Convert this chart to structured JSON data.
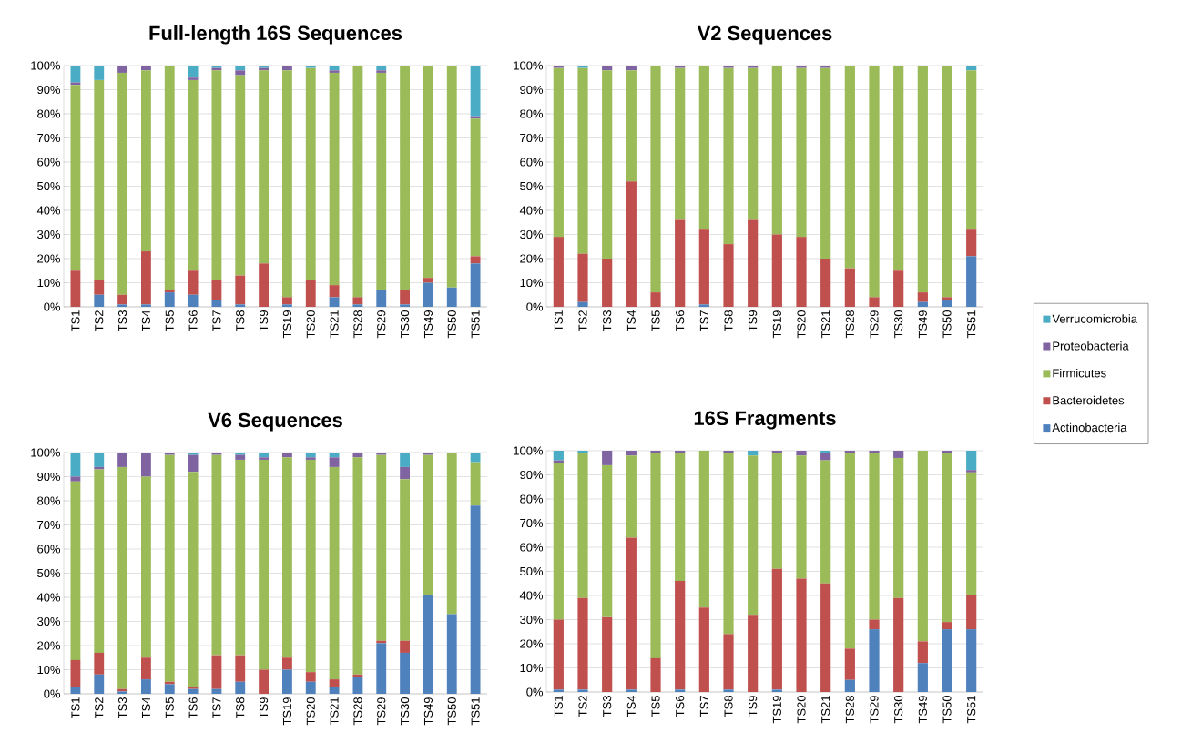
{
  "chart_data": [
    {
      "type": "bar",
      "stacked": true,
      "title": "Full-length 16S Sequences",
      "categories": [
        "TS1",
        "TS2",
        "TS3",
        "TS4",
        "TS5",
        "TS6",
        "TS7",
        "TS8",
        "TS9",
        "TS19",
        "TS20",
        "TS21",
        "TS28",
        "TS29",
        "TS30",
        "TS49",
        "TS50",
        "TS51"
      ],
      "ylim": [
        0,
        100
      ],
      "yticks": [
        {
          "value": 0,
          "label": "0%"
        },
        {
          "value": 10,
          "label": "10%"
        },
        {
          "value": 20,
          "label": "20%"
        },
        {
          "value": 30,
          "label": "30%"
        },
        {
          "value": 40,
          "label": "40%"
        },
        {
          "value": 50,
          "label": "50%"
        },
        {
          "value": 60,
          "label": "60%"
        },
        {
          "value": 70,
          "label": "70%"
        },
        {
          "value": 80,
          "label": "80%"
        },
        {
          "value": 90,
          "label": "90%"
        },
        {
          "value": 100,
          "label": "100%"
        }
      ],
      "grid": "y",
      "series": [
        {
          "color": "#4f81bd",
          "values": [
            0,
            5,
            1,
            1,
            6,
            5,
            3,
            1,
            0,
            1,
            0,
            4,
            1,
            7,
            1,
            10,
            8,
            18
          ]
        },
        {
          "color": "#c0504d",
          "values": [
            15,
            6,
            4,
            22,
            1,
            10,
            8,
            12,
            18,
            3,
            11,
            5,
            3,
            0,
            6,
            2,
            0,
            3
          ]
        },
        {
          "color": "#9bbb59",
          "values": [
            77,
            83,
            92,
            75,
            93,
            79,
            87,
            83,
            80,
            94,
            88,
            88,
            96,
            90,
            93,
            88,
            92,
            57
          ]
        },
        {
          "color": "#8064a2",
          "values": [
            1,
            0,
            3,
            2,
            0,
            1,
            1,
            2,
            1,
            2,
            0,
            1,
            0,
            1,
            0,
            0,
            0,
            1
          ]
        },
        {
          "color": "#4bacc6",
          "values": [
            7,
            6,
            0,
            0,
            0,
            5,
            1,
            2,
            1,
            0,
            1,
            2,
            0,
            2,
            0,
            0,
            0,
            21
          ]
        }
      ]
    },
    {
      "type": "bar",
      "stacked": true,
      "title": "V2 Sequences",
      "categories": [
        "TS1",
        "TS2",
        "TS3",
        "TS4",
        "TS5",
        "TS6",
        "TS7",
        "TS8",
        "TS9",
        "TS19",
        "TS20",
        "TS21",
        "TS28",
        "TS29",
        "TS30",
        "TS49",
        "TS50",
        "TS51"
      ],
      "ylim": [
        0,
        100
      ],
      "yticks": [
        {
          "value": 0,
          "label": "0%"
        },
        {
          "value": 10,
          "label": "10%"
        },
        {
          "value": 20,
          "label": "20%"
        },
        {
          "value": 30,
          "label": "30%"
        },
        {
          "value": 40,
          "label": "40%"
        },
        {
          "value": 50,
          "label": "50%"
        },
        {
          "value": 60,
          "label": "60%"
        },
        {
          "value": 70,
          "label": "70%"
        },
        {
          "value": 80,
          "label": "80%"
        },
        {
          "value": 90,
          "label": "90%"
        },
        {
          "value": 100,
          "label": "100%"
        }
      ],
      "grid": "y",
      "legend": "right",
      "series": [
        {
          "name": "Actinobacteria",
          "color": "#4f81bd",
          "values": [
            0,
            2,
            0,
            0,
            0,
            0,
            1,
            0,
            0,
            0,
            0,
            0,
            0,
            0,
            0,
            2,
            3,
            21
          ]
        },
        {
          "name": "Bacteroidetes",
          "color": "#c0504d",
          "values": [
            29,
            20,
            20,
            52,
            6,
            36,
            31,
            26,
            36,
            30,
            29,
            20,
            16,
            4,
            15,
            4,
            1,
            11
          ]
        },
        {
          "name": "Firmicutes",
          "color": "#9bbb59",
          "values": [
            70,
            77,
            78,
            46,
            94,
            63,
            68,
            73,
            63,
            70,
            70,
            79,
            84,
            96,
            85,
            94,
            96,
            66
          ]
        },
        {
          "name": "Proteobacteria",
          "color": "#8064a2",
          "values": [
            1,
            0,
            2,
            2,
            0,
            1,
            0,
            1,
            1,
            0,
            1,
            1,
            0,
            0,
            0,
            0,
            0,
            0
          ]
        },
        {
          "name": "Verrucomicrobia",
          "color": "#4bacc6",
          "values": [
            0,
            1,
            0,
            0,
            0,
            0,
            0,
            0,
            0,
            0,
            0,
            0,
            0,
            0,
            0,
            0,
            0,
            2
          ]
        }
      ]
    },
    {
      "type": "bar",
      "stacked": true,
      "title": "V6 Sequences",
      "categories": [
        "TS1",
        "TS2",
        "TS3",
        "TS4",
        "TS5",
        "TS6",
        "TS7",
        "TS8",
        "TS9",
        "TS19",
        "TS20",
        "TS21",
        "TS28",
        "TS29",
        "TS30",
        "TS49",
        "TS50",
        "TS51"
      ],
      "ylim": [
        0,
        100
      ],
      "yticks": [
        {
          "value": 0,
          "label": "0%"
        },
        {
          "value": 10,
          "label": "10%"
        },
        {
          "value": 20,
          "label": "20%"
        },
        {
          "value": 30,
          "label": "30%"
        },
        {
          "value": 40,
          "label": "40%"
        },
        {
          "value": 50,
          "label": "50%"
        },
        {
          "value": 60,
          "label": "60%"
        },
        {
          "value": 70,
          "label": "70%"
        },
        {
          "value": 80,
          "label": "80%"
        },
        {
          "value": 90,
          "label": "90%"
        },
        {
          "value": 100,
          "label": "100%"
        }
      ],
      "grid": "y",
      "series": [
        {
          "color": "#4f81bd",
          "values": [
            3,
            8,
            1,
            6,
            4,
            2,
            2,
            5,
            0,
            10,
            5,
            3,
            7,
            21,
            17,
            41,
            33,
            78
          ]
        },
        {
          "color": "#c0504d",
          "values": [
            11,
            9,
            1,
            9,
            1,
            1,
            14,
            11,
            10,
            5,
            4,
            3,
            1,
            1,
            5,
            0,
            0,
            0
          ]
        },
        {
          "color": "#9bbb59",
          "values": [
            74,
            76,
            92,
            75,
            94,
            89,
            83,
            81,
            87,
            83,
            88,
            88,
            90,
            77,
            67,
            58,
            67,
            18
          ]
        },
        {
          "color": "#8064a2",
          "values": [
            2,
            1,
            6,
            10,
            1,
            7,
            1,
            2,
            1,
            2,
            1,
            4,
            2,
            1,
            5,
            1,
            0,
            0
          ]
        },
        {
          "color": "#4bacc6",
          "values": [
            10,
            6,
            0,
            0,
            0,
            1,
            0,
            1,
            2,
            0,
            2,
            2,
            0,
            0,
            6,
            0,
            0,
            4
          ]
        }
      ]
    },
    {
      "type": "bar",
      "stacked": true,
      "title": "16S Fragments",
      "categories": [
        "TS1",
        "TS2",
        "TS3",
        "TS4",
        "TS5",
        "TS6",
        "TS7",
        "TS8",
        "TS9",
        "TS19",
        "TS20",
        "TS21",
        "TS28",
        "TS29",
        "TS30",
        "TS49",
        "TS50",
        "TS51"
      ],
      "ylim": [
        0,
        100
      ],
      "yticks": [
        {
          "value": 0,
          "label": "0%"
        },
        {
          "value": 10,
          "label": "10%"
        },
        {
          "value": 20,
          "label": "20%"
        },
        {
          "value": 30,
          "label": "30%"
        },
        {
          "value": 40,
          "label": "40%"
        },
        {
          "value": 50,
          "label": "50%"
        },
        {
          "value": 60,
          "label": "60%"
        },
        {
          "value": 70,
          "label": "70%"
        },
        {
          "value": 80,
          "label": "80%"
        },
        {
          "value": 90,
          "label": "90%"
        },
        {
          "value": 100,
          "label": "100%"
        }
      ],
      "grid": "y",
      "series": [
        {
          "color": "#4f81bd",
          "values": [
            1,
            1,
            0,
            1,
            0,
            1,
            0,
            1,
            0,
            1,
            0,
            0,
            5,
            26,
            0,
            12,
            26,
            26
          ]
        },
        {
          "color": "#c0504d",
          "values": [
            29,
            38,
            31,
            63,
            14,
            45,
            35,
            23,
            32,
            50,
            47,
            45,
            13,
            4,
            39,
            9,
            3,
            14
          ]
        },
        {
          "color": "#9bbb59",
          "values": [
            65,
            60,
            63,
            34,
            85,
            53,
            65,
            75,
            66,
            48,
            51,
            51,
            81,
            69,
            58,
            79,
            70,
            51
          ]
        },
        {
          "color": "#8064a2",
          "values": [
            1,
            0,
            6,
            2,
            1,
            1,
            0,
            1,
            0,
            1,
            2,
            3,
            1,
            1,
            3,
            0,
            1,
            1
          ]
        },
        {
          "color": "#4bacc6",
          "values": [
            4,
            1,
            0,
            0,
            0,
            0,
            0,
            0,
            2,
            0,
            0,
            1,
            0,
            0,
            0,
            0,
            0,
            8
          ]
        }
      ]
    }
  ]
}
